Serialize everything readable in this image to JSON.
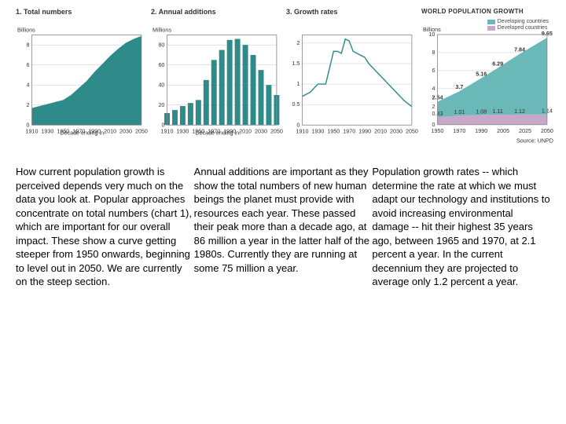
{
  "charts": {
    "panel1": {
      "title": "1. Total numbers",
      "type": "area",
      "ytitle": "Billions",
      "xtitle": "Decade ending in:",
      "xlabels": [
        "1910",
        "1930",
        "1950",
        "1970",
        "1990",
        "2010",
        "2030",
        "2050"
      ],
      "ylim": [
        0,
        9
      ],
      "ytick_step": 2,
      "x": [
        1910,
        1920,
        1930,
        1940,
        1950,
        1960,
        1970,
        1980,
        1990,
        2000,
        2010,
        2020,
        2030,
        2040,
        2050
      ],
      "y": [
        1.7,
        1.9,
        2.1,
        2.3,
        2.5,
        3.0,
        3.7,
        4.4,
        5.3,
        6.1,
        6.9,
        7.6,
        8.2,
        8.6,
        8.9
      ],
      "fill_color": "#2f8a8a",
      "background_color": "#ffffff",
      "grid_color": "#bbbbbb"
    },
    "panel2": {
      "title": "2. Annual additions",
      "type": "bar",
      "ytitle": "Millions",
      "xtitle": "Decade ending in:",
      "xlabels": [
        "1910",
        "1930",
        "1950",
        "1970",
        "1990",
        "2010",
        "2030",
        "2050"
      ],
      "ylim": [
        0,
        90
      ],
      "ytick_step": 20,
      "categories": [
        1910,
        1920,
        1930,
        1940,
        1950,
        1960,
        1970,
        1980,
        1990,
        2000,
        2010,
        2020,
        2030,
        2040,
        2050
      ],
      "values": [
        12,
        15,
        19,
        22,
        25,
        45,
        65,
        75,
        85,
        86,
        80,
        70,
        55,
        40,
        30
      ],
      "bar_color": "#2f8a8a",
      "background_color": "#ffffff",
      "grid_color": "#bbbbbb",
      "bar_width": 0.75
    },
    "panel3": {
      "title": "3. Growth rates",
      "type": "line",
      "ytitle": "",
      "xtitle": "",
      "xlabels": [
        "1910",
        "1930",
        "1950",
        "1970",
        "1990",
        "2010",
        "2030",
        "2050"
      ],
      "ylim": [
        0,
        2.2
      ],
      "ytick_step": 0.5,
      "x": [
        1910,
        1920,
        1930,
        1940,
        1950,
        1955,
        1960,
        1965,
        1970,
        1975,
        1980,
        1985,
        1990,
        1995,
        2000,
        2010,
        2020,
        2030,
        2040,
        2050
      ],
      "y": [
        0.7,
        0.8,
        1.0,
        1.0,
        1.8,
        1.8,
        1.75,
        2.1,
        2.05,
        1.8,
        1.75,
        1.7,
        1.65,
        1.5,
        1.4,
        1.2,
        1.0,
        0.8,
        0.6,
        0.45
      ],
      "line_color": "#2f8a8a",
      "line_width": 1.4,
      "background_color": "#ffffff",
      "grid_color": "#bbbbbb"
    },
    "panel4": {
      "title": "WORLD POPULATION GROWTH",
      "type": "stacked-area",
      "ytitle": "Billions",
      "xtitle": "",
      "xlabels": [
        "1950",
        "1970",
        "1990",
        "2005",
        "2025",
        "2050"
      ],
      "ylim": [
        0,
        10
      ],
      "ytick_step": 2,
      "x": [
        1950,
        1970,
        1990,
        2005,
        2025,
        2050
      ],
      "developed": [
        0.83,
        1.01,
        1.08,
        1.11,
        1.12,
        1.14
      ],
      "developing": [
        1.71,
        2.69,
        4.08,
        5.18,
        6.72,
        8.51
      ],
      "markers_top": [
        2.54,
        3.7,
        5.16,
        6.29,
        7.84,
        9.65
      ],
      "markers_bottom": [
        0.83,
        1.01,
        1.08,
        1.11,
        1.12,
        1.14
      ],
      "developed_color": "#c8a8c8",
      "developing_color": "#6bb8b8",
      "legend": {
        "developing": "Developing countries",
        "developed": "Developed countries"
      },
      "source": "Source: UNPD",
      "background_color": "#ffffff",
      "grid_color": "#bbbbbb"
    }
  },
  "text": {
    "col1": "How current population growth is perceived depends very much on the data you look at. Popular approaches concentrate on total numbers (chart 1), which are important for our overall impact. These show a curve getting steeper from 1950 onwards, beginning to level out in 2050. We are currently on the steep section.",
    "col2": "Annual additions are important as they show the total numbers of new human beings the planet must provide with resources each year. These passed their peak more than a decade ago, at 86 million a year in the latter half of the 1980s. Currently they are running at some 75 million a year.",
    "col3": "Population growth rates -- which determine the rate at which we must adapt our technology and institutions to avoid increasing environmental damage -- hit their highest 35 years ago, between 1965 and 1970, at 2.1 percent a year. In the current decennium they are projected to average only 1.2 percent a year."
  }
}
